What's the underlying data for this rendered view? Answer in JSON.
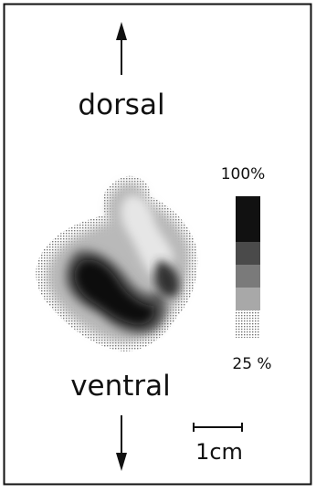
{
  "orientation": {
    "top": "dorsal",
    "bottom": "ventral"
  },
  "intensity_scale": {
    "max": "100%",
    "min": "25 %"
  },
  "scale_bar": "1cm"
}
